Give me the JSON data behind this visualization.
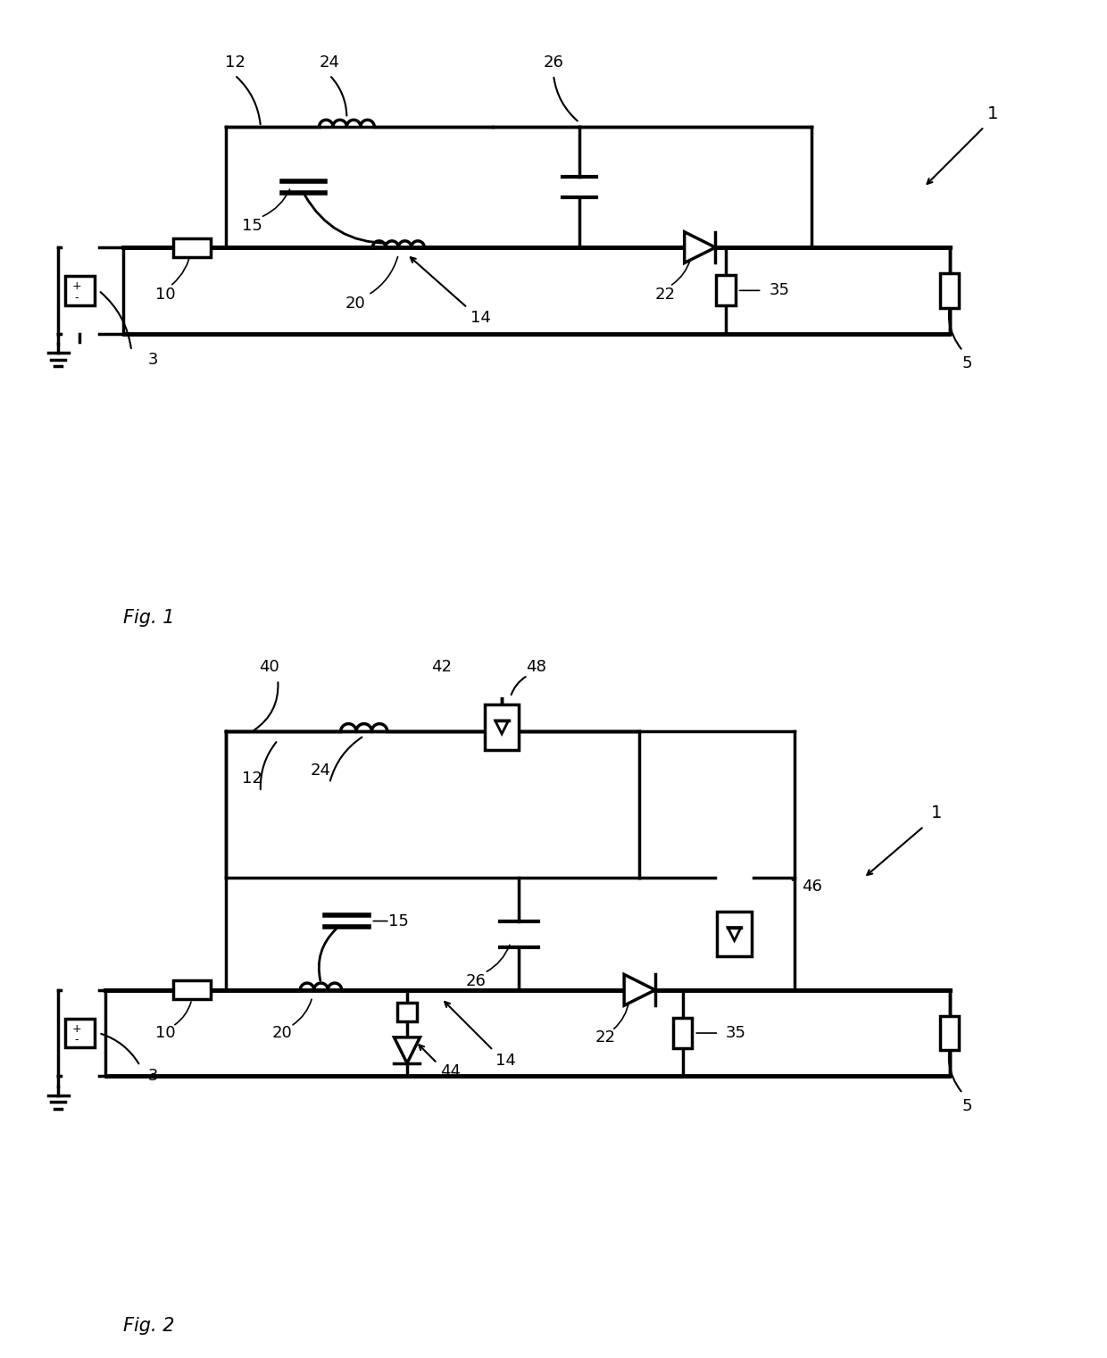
{
  "background_color": "#ffffff",
  "line_color": "#000000",
  "line_width": 2.5,
  "fig_width": 12.4,
  "fig_height": 15.21,
  "fig1_label": "Fig. 1",
  "fig2_label": "Fig. 2",
  "label_1_text": "1",
  "label_3_text": "3",
  "label_5_text": "5",
  "label_10_text": "10",
  "label_12_text": "12",
  "label_14_text": "14",
  "label_15_text": "15",
  "label_20_text": "20",
  "label_22_text": "22",
  "label_24_text": "24",
  "label_26_text": "26",
  "label_35_text": "35",
  "label_40_text": "40",
  "label_42_text": "42",
  "label_44_text": "44",
  "label_46_text": "46",
  "label_48_text": "48"
}
